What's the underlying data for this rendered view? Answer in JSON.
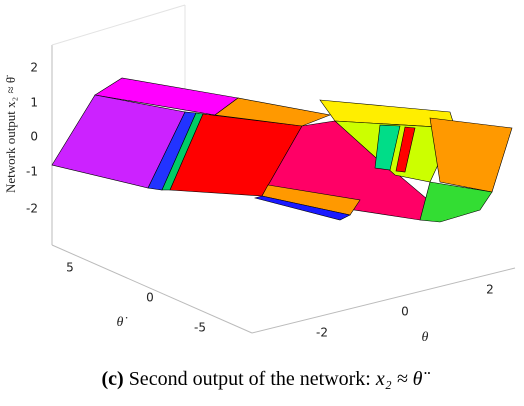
{
  "figure": {
    "axes": {
      "z": {
        "label": "Network output x₂ ≈ θ̈",
        "ticks": [
          "2",
          "1",
          "0",
          "-1",
          "-2"
        ]
      },
      "theta_dot": {
        "label": "θ̇",
        "ticks": [
          "5",
          "0",
          "-5"
        ]
      },
      "theta": {
        "label": "θ",
        "ticks": [
          "-2",
          "0",
          "2"
        ]
      }
    },
    "caption": {
      "label": "(c)",
      "text": "Second output of the network:",
      "math": "x₂ ≈ θ̈"
    }
  }
}
